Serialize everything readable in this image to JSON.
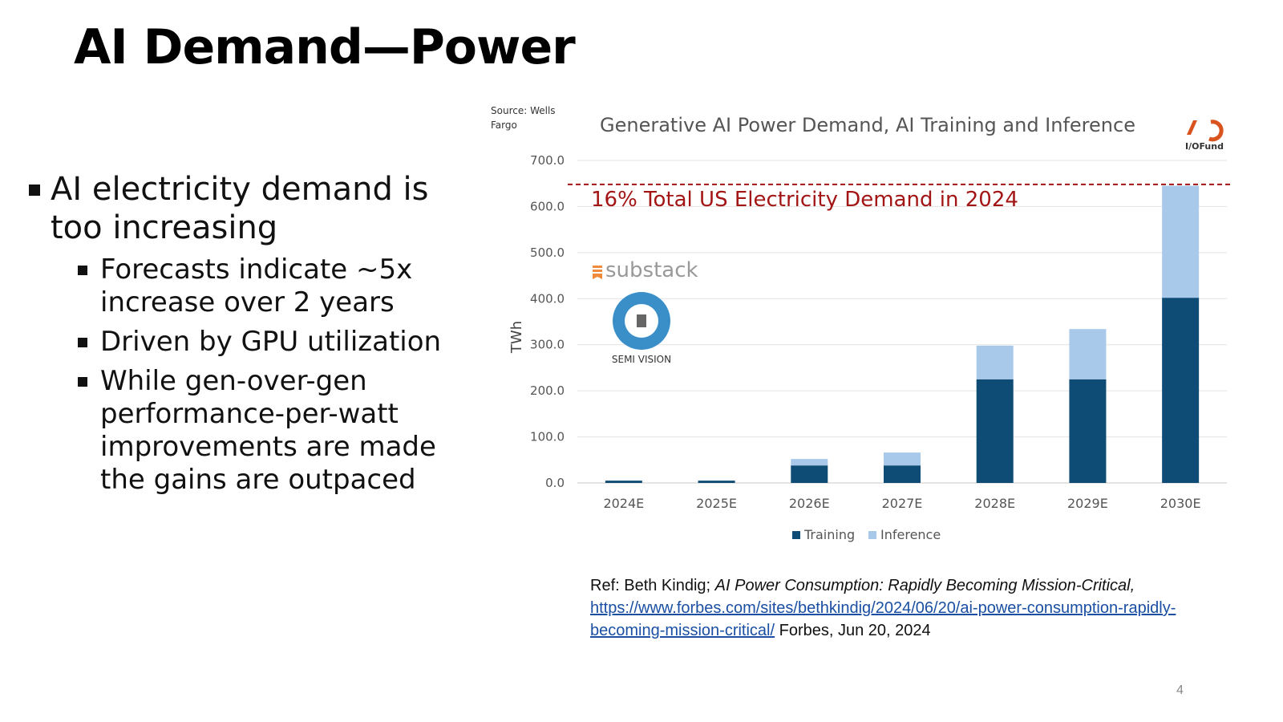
{
  "slide": {
    "title": "AI Demand—Power",
    "page_number": "4"
  },
  "bullets": {
    "main": "AI electricity demand is too increasing",
    "subs": [
      "Forecasts indicate ~5x increase over 2 years",
      "Driven by GPU utilization",
      "While gen-over-gen performance-per-watt improvements are made the gains are outpaced"
    ]
  },
  "reference": {
    "prefix": "Ref: Beth Kindig; ",
    "article_title": "AI Power Consumption: Rapidly Becoming Mission-Critical,",
    "url": "https://www.forbes.com/sites/bethkindig/2024/06/20/ai-power-consumption-rapidly-becoming-mission-critical/",
    "suffix": " Forbes, Jun 20, 2024"
  },
  "watermark": {
    "substack": "substack",
    "semi_vision": "SEMI VISION"
  },
  "chart_data": {
    "type": "bar",
    "stacked": true,
    "title": "Generative AI Power Demand, AI Training and Inference",
    "source": "Source: Wells Fargo",
    "logo": "I/OFund",
    "ylabel": "TWh",
    "xlabel": "",
    "ylim": [
      0,
      700
    ],
    "yticks": [
      "0.0",
      "100.0",
      "200.0",
      "300.0",
      "400.0",
      "500.0",
      "600.0",
      "700.0"
    ],
    "categories": [
      "2024E",
      "2025E",
      "2026E",
      "2027E",
      "2028E",
      "2029E",
      "2030E"
    ],
    "series": [
      {
        "name": "Training",
        "color": "#0f4c75",
        "values": [
          5,
          5,
          38,
          38,
          225,
          225,
          402
        ]
      },
      {
        "name": "Inference",
        "color": "#a8c9ea",
        "values": [
          0,
          0,
          14,
          28,
          73,
          109,
          243
        ]
      }
    ],
    "reference_line": {
      "value": 648,
      "label": "16% Total US Electricity Demand in 2024",
      "color": "#a31515"
    },
    "legend": "bottom",
    "grid": true
  }
}
